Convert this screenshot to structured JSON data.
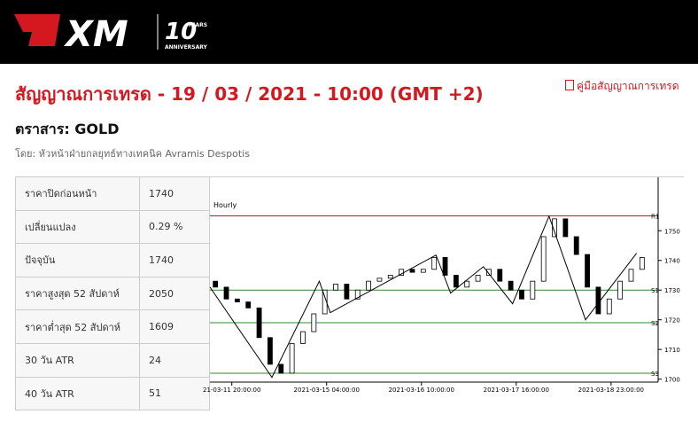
{
  "header": {
    "logo": "XM",
    "badge_number": "10",
    "badge_years": "YEARS",
    "badge_sub": "ANNIVERSARY"
  },
  "title": "สัญญาณการเทรด - 19 / 03 / 2021 - 10:00 (GMT +2)",
  "guide_link": "คู่มือสัญญาณการเทรด",
  "instrument": "ตราสาร: GOLD",
  "author": "โดย: หัวหน้าฝ่ายกลยุทธ์ทางเทคนิค Avramis Despotis",
  "table": {
    "rows": [
      [
        "ราคาปิดก่อนหน้า",
        "1740"
      ],
      [
        "เปลี่ยนแปลง",
        "0.29 %"
      ],
      [
        "ปัจจุบัน",
        "1740"
      ],
      [
        "ราคาสูงสุด 52 สัปดาห์",
        "2050"
      ],
      [
        "ราคาต่ำสุด 52 สัปดาห์",
        "1609"
      ],
      [
        "30 วัน ATR",
        "24"
      ],
      [
        "40 วัน ATR",
        "51"
      ]
    ]
  },
  "chart_data": {
    "type": "candlestick",
    "label": "Hourly",
    "xlim": [
      0,
      120
    ],
    "ylim": [
      1699,
      1768
    ],
    "yticks": [
      1700,
      1710,
      1720,
      1730,
      1740,
      1750
    ],
    "xticks": [
      {
        "value": 6,
        "label": "21-03-11 20:00:00"
      },
      {
        "value": 32,
        "label": "2021-03-15 04:00:00"
      },
      {
        "value": 58,
        "label": "2021-03-16 10:00:00"
      },
      {
        "value": 84,
        "label": "2021-03-17 16:00:00"
      },
      {
        "value": 110,
        "label": "2021-03-18 23:00:00"
      }
    ],
    "open": [
      1733,
      1731,
      1727,
      1726,
      1724,
      1714,
      1705,
      1702,
      1712,
      1716,
      1722,
      1730,
      1732,
      1727,
      1730,
      1733,
      1734,
      1735,
      1737,
      1736,
      1737,
      1741,
      1735,
      1731,
      1733,
      1735,
      1737,
      1733,
      1730,
      1727,
      1733,
      1748,
      1754,
      1748,
      1742,
      1731,
      1722,
      1727,
      1733,
      1737
    ],
    "close": [
      1731,
      1727,
      1726,
      1724,
      1714,
      1705,
      1702,
      1712,
      1716,
      1722,
      1730,
      1732,
      1727,
      1730,
      1733,
      1734,
      1735,
      1737,
      1736,
      1737,
      1741,
      1735,
      1731,
      1733,
      1735,
      1737,
      1733,
      1730,
      1727,
      1733,
      1748,
      1754,
      1748,
      1742,
      1731,
      1722,
      1727,
      1733,
      1737,
      1741
    ],
    "up_color": "#ffffff",
    "down_color": "#000000",
    "zigzag": {
      "x": [
        0,
        17,
        30,
        33,
        62,
        66,
        75,
        83,
        93,
        103,
        117
      ],
      "values": [
        1731,
        1700.6,
        1733,
        1722.4,
        1741.8,
        1729,
        1737.9,
        1725.4,
        1754.9,
        1720,
        1742.4
      ],
      "color": "#000000"
    },
    "levels": [
      {
        "name": "R1",
        "value": 1755,
        "color": "#b22222"
      },
      {
        "name": "S1",
        "value": 1730,
        "color": "#2e8b2e"
      },
      {
        "name": "S2",
        "value": 1719,
        "color": "#2e8b2e"
      },
      {
        "name": "S3",
        "value": 1702,
        "color": "#2e8b2e"
      }
    ]
  }
}
